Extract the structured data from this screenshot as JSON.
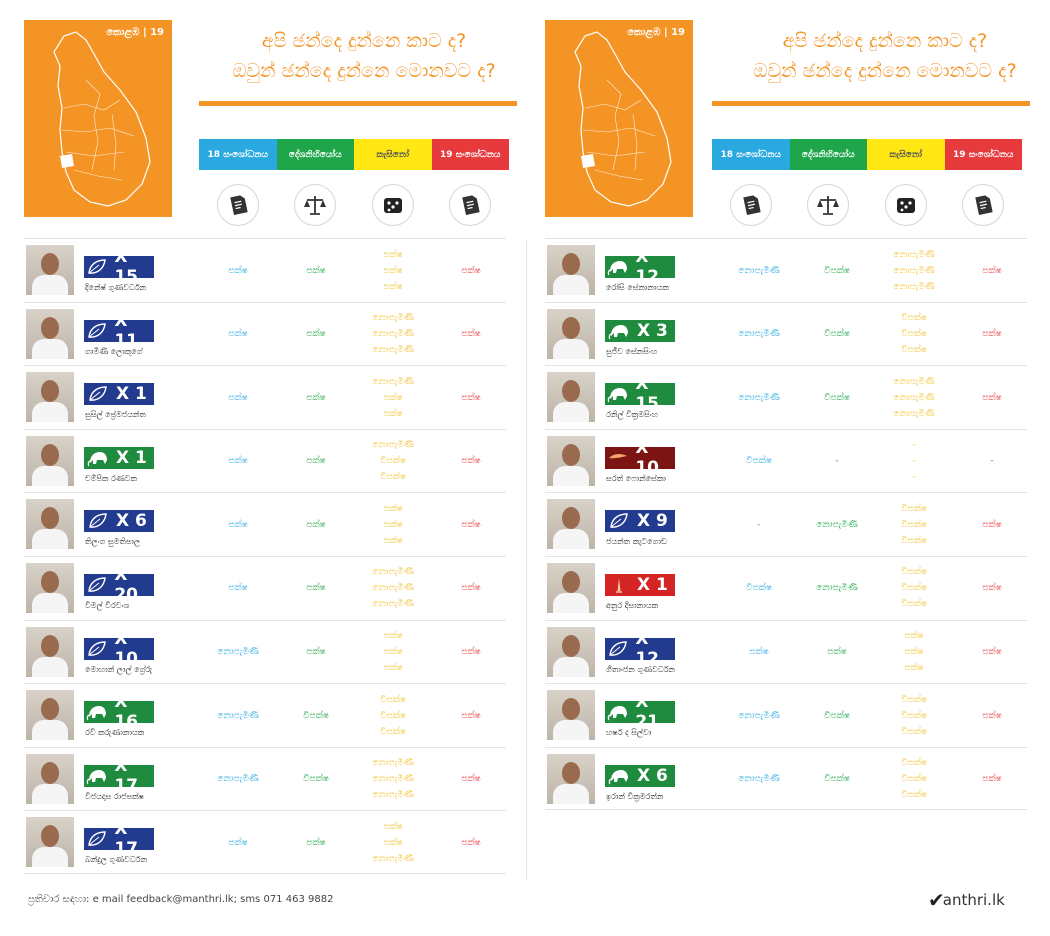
{
  "header": {
    "map_label": "කොළඹ | 19",
    "headline_line1": "අපි ඡන්දෙ දුන්නෙ කාට ද?",
    "headline_line2": "ඔවුන් ඡන්දෙ දුන්නෙ මොනවට ද?"
  },
  "categories": [
    {
      "label": "18 සංශෝධනය"
    },
    {
      "label": "දේශනිහියෝය"
    },
    {
      "label": "කැසිනෝ"
    },
    {
      "label": "19 සංශෝධනය"
    }
  ],
  "category_icons": [
    "document-icon",
    "scales-icon",
    "dice-icon",
    "document-icon"
  ],
  "colors": {
    "accent": "#f39425",
    "blue": "#2aa8e0",
    "green": "#1fa64a",
    "yellow": "#ffe714",
    "red": "#e73a3c",
    "party_blue": "#223b8f",
    "party_green": "#1e8b3e"
  },
  "left_rows": [
    {
      "number": "X 15",
      "party": "blue",
      "name": "දිනේෂ් ගුණවර්ධන",
      "v1": [
        "පක්ෂ"
      ],
      "v2": [
        "පක්ෂ"
      ],
      "v3": [
        "පක්ෂ",
        "පක්ෂ",
        "පක්ෂ"
      ],
      "v4": [
        "පක්ෂ"
      ]
    },
    {
      "number": "X 11",
      "party": "blue",
      "name": "ගාමිණී ලොකුගේ",
      "v1": [
        "පක්ෂ"
      ],
      "v2": [
        "පක්ෂ"
      ],
      "v3": [
        "නොපැමිණි",
        "නොපැමිණි",
        "නොපැමිණි"
      ],
      "v4": [
        "පක්ෂ"
      ]
    },
    {
      "number": "X 1",
      "party": "blue",
      "name": "සුසිල් ප්‍රේමජයන්ත",
      "v1": [
        "පක්ෂ"
      ],
      "v2": [
        "පක්ෂ"
      ],
      "v3": [
        "නොපැමිණි",
        "පක්ෂ",
        "පක්ෂ"
      ],
      "v4": [
        "පක්ෂ"
      ]
    },
    {
      "number": "X 1",
      "party": "green",
      "name": "චම්පික රණවක",
      "v1": [
        "පක්ෂ"
      ],
      "v2": [
        "පක්ෂ"
      ],
      "v3": [
        "නොපැමිණි",
        "විපක්ෂ",
        "විපක්ෂ"
      ],
      "v4": [
        "පක්ෂ"
      ]
    },
    {
      "number": "X 6",
      "party": "blue",
      "name": "තිලංග සුමතිපාල",
      "v1": [
        "පක්ෂ"
      ],
      "v2": [
        "පක්ෂ"
      ],
      "v3": [
        "පක්ෂ",
        "පක්ෂ",
        "පක්ෂ"
      ],
      "v4": [
        "පක්ෂ"
      ]
    },
    {
      "number": "X 20",
      "party": "blue",
      "name": "විමල් වීරවංශ",
      "v1": [
        "පක්ෂ"
      ],
      "v2": [
        "පක්ෂ"
      ],
      "v3": [
        "නොපැමිණි",
        "නොපැමිණි",
        "නොපැමිණි"
      ],
      "v4": [
        "පක්ෂ"
      ]
    },
    {
      "number": "X 10",
      "party": "blue",
      "name": "මොහාන් ලාල් ග්‍රේරු",
      "v1": [
        "නොපැමිණි"
      ],
      "v2": [
        "පක්ෂ"
      ],
      "v3": [
        "පක්ෂ",
        "පක්ෂ",
        "පක්ෂ"
      ],
      "v4": [
        "පක්ෂ"
      ]
    },
    {
      "number": "X 16",
      "party": "green",
      "name": "රවි කරුණානායක",
      "v1": [
        "නොපැමිණි"
      ],
      "v2": [
        "විපක්ෂ"
      ],
      "v3": [
        "විපක්ෂ",
        "විපක්ෂ",
        "විපක්ෂ"
      ],
      "v4": [
        "පක්ෂ"
      ]
    },
    {
      "number": "X 17",
      "party": "green",
      "name": "විජයදාස රාජපක්ෂ",
      "v1": [
        "නොපැමිණි"
      ],
      "v2": [
        "විපක්ෂ"
      ],
      "v3": [
        "නොපැමිණි",
        "නොපැමිණි",
        "නොපැමිණි"
      ],
      "v4": [
        "පක්ෂ"
      ]
    },
    {
      "number": "X 17",
      "party": "blue",
      "name": "බන්දුල ගුණවර්ධන",
      "v1": [
        "පක්ෂ"
      ],
      "v2": [
        "පක්ෂ"
      ],
      "v3": [
        "පක්ෂ",
        "පක්ෂ",
        "නොපැමිණි"
      ],
      "v4": [
        "පක්ෂ"
      ]
    }
  ],
  "right_rows": [
    {
      "number": "X 12",
      "party": "green",
      "name": "රෝසි සේනානායක",
      "v1": [
        "නොපැමිණි"
      ],
      "v2": [
        "විපක්ෂ"
      ],
      "v3": [
        "නොපැමිණි",
        "නොපැමිණි",
        "නොපැමිණි"
      ],
      "v4": [
        "පක්ෂ"
      ]
    },
    {
      "number": "X 3",
      "party": "green",
      "name": "සුජීව සේනසිංහ",
      "v1": [
        "නොපැමිණි"
      ],
      "v2": [
        "විපක්ෂ"
      ],
      "v3": [
        "විපක්ෂ",
        "විපක්ෂ",
        "විපක්ෂ"
      ],
      "v4": [
        "පක්ෂ"
      ]
    },
    {
      "number": "X 15",
      "party": "green",
      "name": "රනිල් වික්‍රමසිංහ",
      "v1": [
        "නොපැමිණි"
      ],
      "v2": [
        "විපක්ෂ"
      ],
      "v3": [
        "නොපැමිණි",
        "නොපැමිණි",
        "නොපැමිණි"
      ],
      "v4": [
        "පක්ෂ"
      ]
    },
    {
      "number": "X 10",
      "party": "maroon",
      "name": "සරත් ෆොන්සේකා",
      "v1": [
        "විපක්ෂ"
      ],
      "v2": [
        "-"
      ],
      "v3": [
        "-",
        "-",
        "-"
      ],
      "v4": [
        "-"
      ]
    },
    {
      "number": "X 9",
      "party": "blue",
      "name": "ජයන්ත කැටගොඩ",
      "v1": [
        "-"
      ],
      "v2": [
        "නොපැමිණි"
      ],
      "v3": [
        "විපක්ෂ",
        "විපක්ෂ",
        "විපක්ෂ"
      ],
      "v4": [
        "පක්ෂ"
      ]
    },
    {
      "number": "X 1",
      "party": "red",
      "name": "අනුර දිසානායක",
      "v1": [
        "විපක්ෂ"
      ],
      "v2": [
        "නොපැමිණි"
      ],
      "v3": [
        "විපක්ෂ",
        "විපක්ෂ",
        "විපක්ෂ"
      ],
      "v4": [
        "පක්ෂ"
      ]
    },
    {
      "number": "X 12",
      "party": "blue",
      "name": "ගීතාංජන ගුණවර්ධන",
      "v1": [
        "පක්ෂ"
      ],
      "v2": [
        "පක්ෂ"
      ],
      "v3": [
        "පක්ෂ",
        "පක්ෂ",
        "පක්ෂ"
      ],
      "v4": [
        "පක්ෂ"
      ]
    },
    {
      "number": "X 21",
      "party": "green",
      "name": "හර්ෂ ද සිල්වා",
      "v1": [
        "නොපැමිණි"
      ],
      "v2": [
        "විපක්ෂ"
      ],
      "v3": [
        "විපක්ෂ",
        "විපක්ෂ",
        "විපක්ෂ"
      ],
      "v4": [
        "පක්ෂ"
      ]
    },
    {
      "number": "X 6",
      "party": "green",
      "name": "ඉරාන් වික්‍රමරත්න",
      "v1": [
        "නොපැමිණි"
      ],
      "v2": [
        "විපක්ෂ"
      ],
      "v3": [
        "විපක්ෂ",
        "විපක්ෂ",
        "විපක්ෂ"
      ],
      "v4": [
        "පක්ෂ"
      ]
    }
  ],
  "footer": {
    "text": "ප්‍රතිචාර සඳහා: e mail feedback@manthri.lk; sms 071 463 9882",
    "logo": "anthri.lk"
  }
}
